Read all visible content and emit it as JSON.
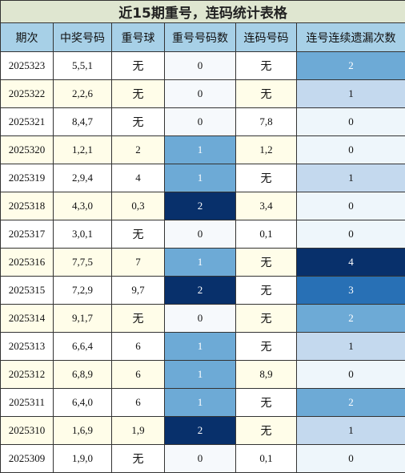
{
  "title": "近15期重号，连码统计表格",
  "headers": [
    "期次",
    "中奖号码",
    "重号球",
    "重号号码数",
    "连码号码",
    "连号连续遗漏次数"
  ],
  "rows": [
    [
      "2025323",
      "5,5,1",
      "无",
      "0",
      "无",
      "2"
    ],
    [
      "2025322",
      "2,2,6",
      "无",
      "0",
      "无",
      "1"
    ],
    [
      "2025321",
      "8,4,7",
      "无",
      "0",
      "7,8",
      "0"
    ],
    [
      "2025320",
      "1,2,1",
      "2",
      "1",
      "1,2",
      "0"
    ],
    [
      "2025319",
      "2,9,4",
      "4",
      "1",
      "无",
      "1"
    ],
    [
      "2025318",
      "4,3,0",
      "0,3",
      "2",
      "3,4",
      "0"
    ],
    [
      "2025317",
      "3,0,1",
      "无",
      "0",
      "0,1",
      "0"
    ],
    [
      "2025316",
      "7,7,5",
      "7",
      "1",
      "无",
      "4"
    ],
    [
      "2025315",
      "7,2,9",
      "9,7",
      "2",
      "无",
      "3"
    ],
    [
      "2025314",
      "9,1,7",
      "无",
      "0",
      "无",
      "2"
    ],
    [
      "2025313",
      "6,6,4",
      "6",
      "1",
      "无",
      "1"
    ],
    [
      "2025312",
      "6,8,9",
      "6",
      "1",
      "8,9",
      "0"
    ],
    [
      "2025311",
      "6,4,0",
      "6",
      "1",
      "无",
      "2"
    ],
    [
      "2025310",
      "1,6,9",
      "1,9",
      "2",
      "无",
      "1"
    ],
    [
      "2025309",
      "1,9,0",
      "无",
      "0",
      "0,1",
      "0"
    ]
  ],
  "colors": {
    "title_bg": "#dfe6d0",
    "header_bg": "#a7d0e7",
    "row_even_bg": "#fffde9",
    "scale_light": "#c4d9ee",
    "scale_mid": "#6daad6",
    "scale_dark": "#2870b5",
    "scale_darkest": "#08306b"
  }
}
